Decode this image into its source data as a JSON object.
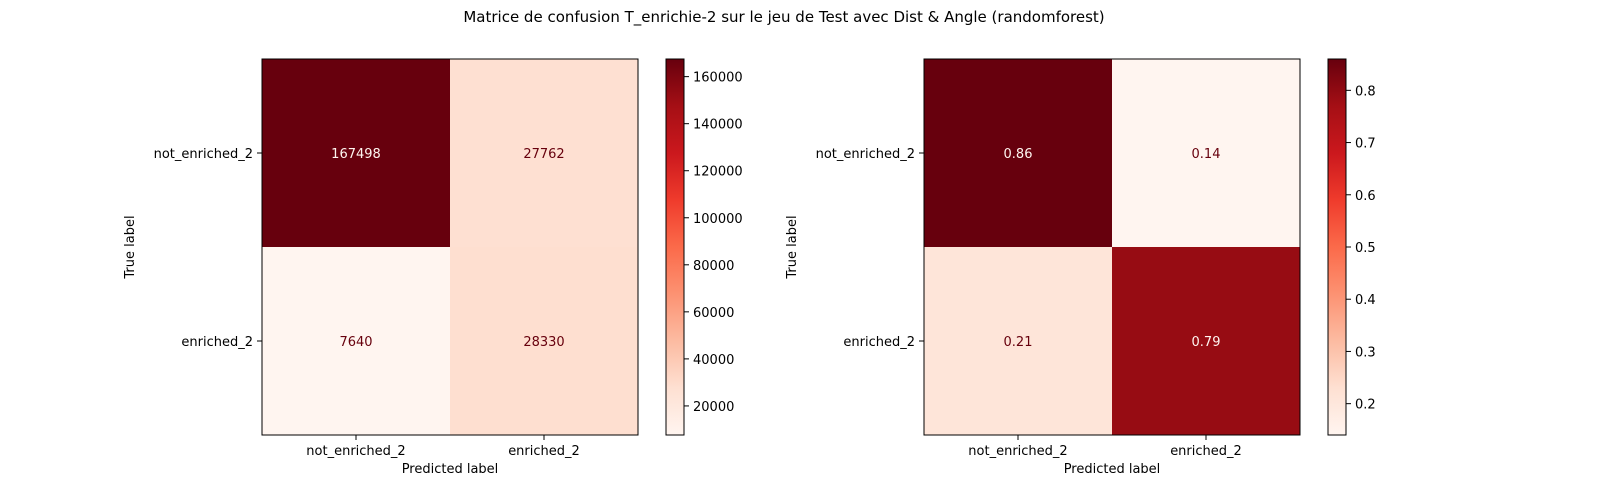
{
  "figure": {
    "suptitle": "Matrice de confusion T_enrichie-2 sur le jeu de Test avec Dist & Angle (randomforest)"
  },
  "chart_data": [
    {
      "type": "heatmap",
      "colormap": "Reds",
      "xlabel": "Predicted label",
      "ylabel": "True label",
      "x_categories": [
        "not_enriched_2",
        "enriched_2"
      ],
      "y_categories": [
        "not_enriched_2",
        "enriched_2"
      ],
      "values": [
        [
          167498,
          27762
        ],
        [
          7640,
          28330
        ]
      ],
      "cell_labels": [
        [
          "167498",
          "27762"
        ],
        [
          "7640",
          "28330"
        ]
      ],
      "colorbar": {
        "range": [
          7640,
          167498
        ],
        "ticks": [
          20000,
          40000,
          60000,
          80000,
          100000,
          120000,
          140000,
          160000
        ],
        "tick_labels": [
          "20000",
          "40000",
          "60000",
          "80000",
          "100000",
          "120000",
          "140000",
          "160000"
        ]
      }
    },
    {
      "type": "heatmap",
      "colormap": "Reds",
      "xlabel": "Predicted label",
      "ylabel": "True label",
      "x_categories": [
        "not_enriched_2",
        "enriched_2"
      ],
      "y_categories": [
        "not_enriched_2",
        "enriched_2"
      ],
      "values": [
        [
          0.86,
          0.14
        ],
        [
          0.21,
          0.79
        ]
      ],
      "cell_labels": [
        [
          "0.86",
          "0.14"
        ],
        [
          "0.21",
          "0.79"
        ]
      ],
      "colorbar": {
        "range": [
          0.14,
          0.86
        ],
        "ticks": [
          0.2,
          0.3,
          0.4,
          0.5,
          0.6,
          0.7,
          0.8
        ],
        "tick_labels": [
          "0.2",
          "0.3",
          "0.4",
          "0.5",
          "0.6",
          "0.7",
          "0.8"
        ]
      }
    }
  ]
}
